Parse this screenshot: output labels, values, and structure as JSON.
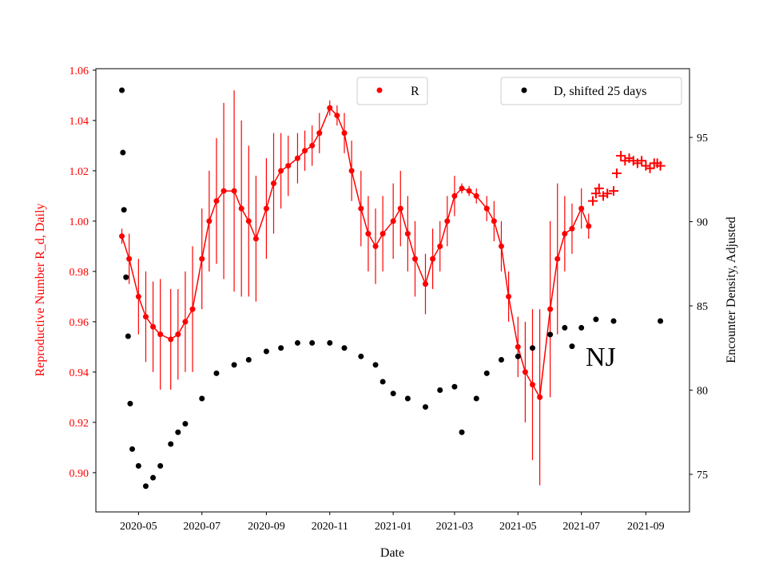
{
  "chart_data": {
    "type": "scatter",
    "title": "",
    "xlabel": "Date",
    "ylabel_left": "Reproductive Number R_d, Daily",
    "ylabel_right": "Encounter Density, Adjusted",
    "annotation": "NJ",
    "xlim": [
      "2020-03-21",
      "2021-10-13"
    ],
    "ylim_left": [
      0.8844,
      1.0606
    ],
    "ylim_right": [
      72.77,
      99.08
    ],
    "x_ticks": [
      "2020-05",
      "2020-07",
      "2020-09",
      "2020-11",
      "2021-01",
      "2021-03",
      "2021-05",
      "2021-07",
      "2021-09"
    ],
    "y_ticks_left": [
      "0.90",
      "0.92",
      "0.94",
      "0.96",
      "0.98",
      "1.00",
      "1.02",
      "1.04",
      "1.06"
    ],
    "y_ticks_right": [
      "75",
      "80",
      "85",
      "90",
      "95"
    ],
    "grid": false,
    "legend": [
      {
        "label": "R",
        "placement": "top-center",
        "color": "#ff0000"
      },
      {
        "label": "D, shifted 25 days",
        "placement": "top-right",
        "color": "#000000"
      }
    ],
    "colors": {
      "R": "#ff0000",
      "D": "#000000",
      "left_axis": "#ff0000"
    },
    "series": [
      {
        "name": "R",
        "axis": "left",
        "marker": "circle-with-errorbars",
        "points": [
          [
            "2020-04-15",
            0.994,
            0.003
          ],
          [
            "2020-04-22",
            0.985,
            0.01
          ],
          [
            "2020-05-01",
            0.97,
            0.015
          ],
          [
            "2020-05-08",
            0.962,
            0.018
          ],
          [
            "2020-05-15",
            0.958,
            0.018
          ],
          [
            "2020-05-22",
            0.955,
            0.022
          ],
          [
            "2020-06-01",
            0.953,
            0.02
          ],
          [
            "2020-06-08",
            0.955,
            0.018
          ],
          [
            "2020-06-15",
            0.96,
            0.02
          ],
          [
            "2020-06-22",
            0.965,
            0.025
          ],
          [
            "2020-07-01",
            0.985,
            0.02
          ],
          [
            "2020-07-08",
            1.0,
            0.02
          ],
          [
            "2020-07-15",
            1.008,
            0.025
          ],
          [
            "2020-07-22",
            1.012,
            0.035
          ],
          [
            "2020-08-01",
            1.012,
            0.04
          ],
          [
            "2020-08-08",
            1.005,
            0.035
          ],
          [
            "2020-08-15",
            1.0,
            0.03
          ],
          [
            "2020-08-22",
            0.993,
            0.025
          ],
          [
            "2020-09-01",
            1.005,
            0.02
          ],
          [
            "2020-09-08",
            1.015,
            0.02
          ],
          [
            "2020-09-15",
            1.02,
            0.015
          ],
          [
            "2020-09-22",
            1.022,
            0.012
          ],
          [
            "2020-10-01",
            1.025,
            0.01
          ],
          [
            "2020-10-08",
            1.028,
            0.008
          ],
          [
            "2020-10-15",
            1.03,
            0.008
          ],
          [
            "2020-10-22",
            1.035,
            0.008
          ],
          [
            "2020-11-01",
            1.045,
            0.003
          ],
          [
            "2020-11-08",
            1.042,
            0.004
          ],
          [
            "2020-11-15",
            1.035,
            0.008
          ],
          [
            "2020-11-22",
            1.02,
            0.012
          ],
          [
            "2020-12-01",
            1.005,
            0.015
          ],
          [
            "2020-12-08",
            0.995,
            0.015
          ],
          [
            "2020-12-15",
            0.99,
            0.015
          ],
          [
            "2020-12-22",
            0.995,
            0.015
          ],
          [
            "2021-01-01",
            1.0,
            0.015
          ],
          [
            "2021-01-08",
            1.005,
            0.015
          ],
          [
            "2021-01-15",
            0.995,
            0.015
          ],
          [
            "2021-01-22",
            0.985,
            0.015
          ],
          [
            "2021-02-01",
            0.975,
            0.012
          ],
          [
            "2021-02-08",
            0.985,
            0.012
          ],
          [
            "2021-02-15",
            0.99,
            0.01
          ],
          [
            "2021-02-22",
            1.0,
            0.01
          ],
          [
            "2021-03-01",
            1.01,
            0.008
          ],
          [
            "2021-03-08",
            1.013,
            0.002
          ],
          [
            "2021-03-15",
            1.012,
            0.002
          ],
          [
            "2021-03-22",
            1.01,
            0.003
          ],
          [
            "2021-04-01",
            1.005,
            0.005
          ],
          [
            "2021-04-08",
            1.0,
            0.008
          ],
          [
            "2021-04-15",
            0.99,
            0.01
          ],
          [
            "2021-04-22",
            0.97,
            0.01
          ],
          [
            "2021-05-01",
            0.95,
            0.012
          ],
          [
            "2021-05-08",
            0.94,
            0.02
          ],
          [
            "2021-05-15",
            0.935,
            0.03
          ],
          [
            "2021-05-22",
            0.93,
            0.035
          ],
          [
            "2021-06-01",
            0.965,
            0.035
          ],
          [
            "2021-06-08",
            0.985,
            0.03
          ],
          [
            "2021-06-15",
            0.995,
            0.015
          ],
          [
            "2021-06-22",
            0.997,
            0.01
          ],
          [
            "2021-07-01",
            1.005,
            0.008
          ],
          [
            "2021-07-08",
            0.998,
            0.005
          ]
        ]
      },
      {
        "name": "R",
        "axis": "left",
        "marker": "plus",
        "points": [
          [
            "2021-07-12",
            1.008
          ],
          [
            "2021-07-15",
            1.011
          ],
          [
            "2021-07-18",
            1.013
          ],
          [
            "2021-07-22",
            1.01
          ],
          [
            "2021-07-26",
            1.011
          ],
          [
            "2021-08-01",
            1.012
          ],
          [
            "2021-08-04",
            1.019
          ],
          [
            "2021-08-08",
            1.026
          ],
          [
            "2021-08-12",
            1.024
          ],
          [
            "2021-08-16",
            1.025
          ],
          [
            "2021-08-20",
            1.024
          ],
          [
            "2021-08-24",
            1.023
          ],
          [
            "2021-08-28",
            1.024
          ],
          [
            "2021-09-01",
            1.022
          ],
          [
            "2021-09-05",
            1.021
          ],
          [
            "2021-09-09",
            1.023
          ],
          [
            "2021-09-12",
            1.023
          ],
          [
            "2021-09-15",
            1.022
          ]
        ]
      },
      {
        "name": "D, shifted 25 days",
        "axis": "right",
        "marker": "circle",
        "points": [
          [
            "2020-04-15",
            97.8
          ],
          [
            "2020-04-16",
            94.1
          ],
          [
            "2020-04-17",
            90.7
          ],
          [
            "2020-04-19",
            86.7
          ],
          [
            "2020-04-21",
            83.2
          ],
          [
            "2020-04-23",
            79.2
          ],
          [
            "2020-04-25",
            76.5
          ],
          [
            "2020-05-01",
            75.5
          ],
          [
            "2020-05-08",
            74.3
          ],
          [
            "2020-05-15",
            74.8
          ],
          [
            "2020-05-22",
            75.5
          ],
          [
            "2020-06-01",
            76.8
          ],
          [
            "2020-06-08",
            77.5
          ],
          [
            "2020-06-15",
            78.0
          ],
          [
            "2020-07-01",
            79.5
          ],
          [
            "2020-07-15",
            81.0
          ],
          [
            "2020-08-01",
            81.5
          ],
          [
            "2020-08-15",
            81.8
          ],
          [
            "2020-09-01",
            82.3
          ],
          [
            "2020-09-15",
            82.5
          ],
          [
            "2020-10-01",
            82.8
          ],
          [
            "2020-10-15",
            82.8
          ],
          [
            "2020-11-01",
            82.8
          ],
          [
            "2020-11-15",
            82.5
          ],
          [
            "2020-12-01",
            82.0
          ],
          [
            "2020-12-15",
            81.5
          ],
          [
            "2020-12-22",
            80.5
          ],
          [
            "2021-01-01",
            79.8
          ],
          [
            "2021-01-15",
            79.5
          ],
          [
            "2021-02-01",
            79.0
          ],
          [
            "2021-02-15",
            80.0
          ],
          [
            "2021-03-01",
            80.2
          ],
          [
            "2021-03-08",
            77.5
          ],
          [
            "2021-03-22",
            79.5
          ],
          [
            "2021-04-01",
            81.0
          ],
          [
            "2021-04-15",
            81.8
          ],
          [
            "2021-05-01",
            82.0
          ],
          [
            "2021-05-15",
            82.5
          ],
          [
            "2021-06-01",
            83.3
          ],
          [
            "2021-06-15",
            83.7
          ],
          [
            "2021-06-22",
            82.6
          ],
          [
            "2021-07-01",
            83.7
          ],
          [
            "2021-07-15",
            84.2
          ],
          [
            "2021-08-01",
            84.1
          ],
          [
            "2021-09-15",
            84.1
          ]
        ]
      }
    ]
  }
}
